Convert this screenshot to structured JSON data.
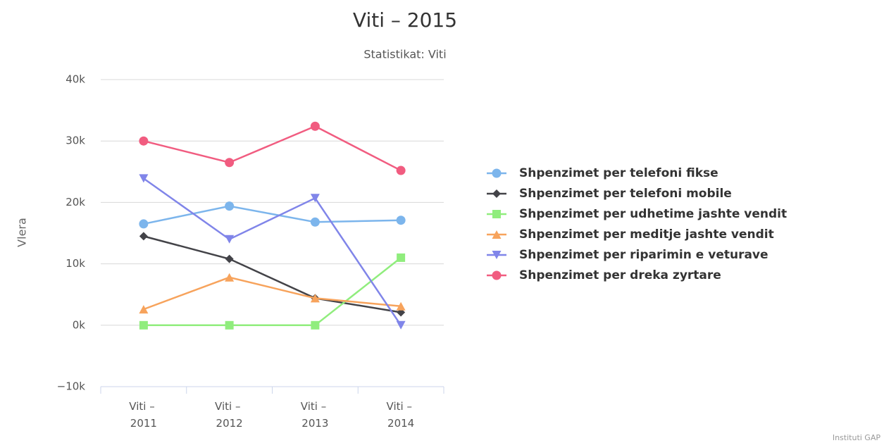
{
  "chart_data": {
    "type": "line",
    "title": "Viti – 2015",
    "subtitle": "Statistikat: Viti",
    "y_label": "Vlera",
    "credits": "Instituti GAP",
    "categories": [
      "Viti – 2011",
      "Viti – 2012",
      "Viti – 2013",
      "Viti – 2014"
    ],
    "ylim": [
      -10000,
      40000
    ],
    "yticks": [
      {
        "value": -10000,
        "label": "−10k"
      },
      {
        "value": 0,
        "label": "0k"
      },
      {
        "value": 10000,
        "label": "10k"
      },
      {
        "value": 20000,
        "label": "20k"
      },
      {
        "value": 30000,
        "label": "30k"
      },
      {
        "value": 40000,
        "label": "40k"
      }
    ],
    "grid": true,
    "legend": "right",
    "series": [
      {
        "name": "Shpenzimet per telefoni fikse",
        "color": "#7cb5ec",
        "marker": "circle",
        "values": [
          16500,
          19400,
          16800,
          17100
        ]
      },
      {
        "name": "Shpenzimet per telefoni mobile",
        "color": "#434348",
        "marker": "diamond",
        "values": [
          14500,
          10800,
          4400,
          2100
        ]
      },
      {
        "name": "Shpenzimet per udhetime jashte vendit",
        "color": "#90ed7d",
        "marker": "square",
        "values": [
          0,
          0,
          0,
          11000
        ]
      },
      {
        "name": "Shpenzimet per meditje jashte vendit",
        "color": "#f7a35c",
        "marker": "triangle",
        "values": [
          2600,
          7800,
          4400,
          3100
        ]
      },
      {
        "name": "Shpenzimet per riparimin e veturave",
        "color": "#8085e9",
        "marker": "triangle-down",
        "values": [
          23900,
          14000,
          20700,
          0
        ]
      },
      {
        "name": "Shpenzimet per dreka zyrtare",
        "color": "#f15c80",
        "marker": "circle",
        "values": [
          30000,
          26500,
          32400,
          25200
        ]
      }
    ]
  }
}
